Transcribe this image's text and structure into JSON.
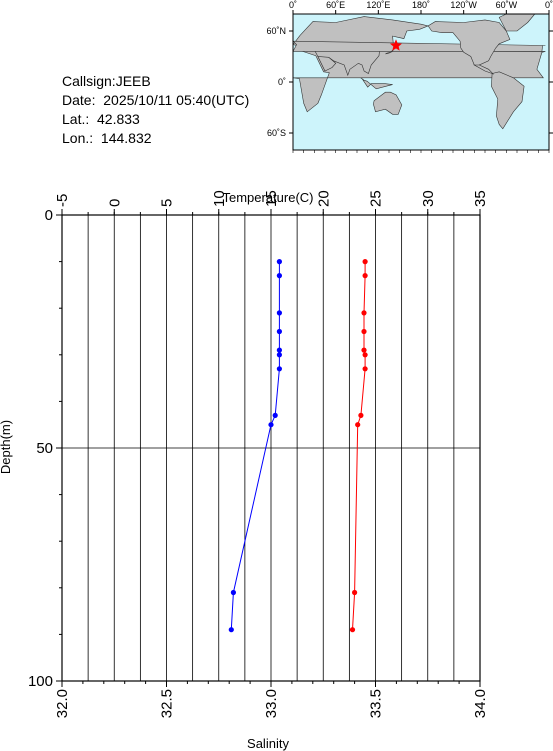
{
  "station": {
    "callsign_line": "Callsign:JEEB",
    "date_line": "Date:  2025/10/11 05:40(UTC)",
    "lat_line": "Lat.:  42.833",
    "lon_line": "Lon.:  144.832"
  },
  "map": {
    "lon_labels": [
      "0˚",
      "60˚E",
      "120˚E",
      "180˚",
      "120˚W",
      "60˚W",
      "0˚"
    ],
    "lat_labels": [
      "60˚N",
      "0˚",
      "60˚S"
    ],
    "marker_lat": 42.833,
    "marker_lon": 144.832,
    "ocean_color": "#cdf4fb",
    "land_color": "#c0c0c0",
    "marker_color": "#ff0000"
  },
  "chart_data": {
    "type": "line",
    "xlabel_top": "Temperature(C)",
    "xlabel_bottom": "Salinity",
    "ylabel": "Depth(m)",
    "temperature_lim": [
      -5,
      35
    ],
    "temperature_ticks": [
      "-5",
      "0",
      "5",
      "10",
      "15",
      "20",
      "25",
      "30",
      "35"
    ],
    "salinity_lim": [
      32.0,
      34.0
    ],
    "salinity_ticks": [
      "32.0",
      "32.5",
      "33.0",
      "33.5",
      "34.0"
    ],
    "depth_lim": [
      0,
      100
    ],
    "depth_ticks": [
      "0",
      "50",
      "100"
    ],
    "series": [
      {
        "axis": "temperature",
        "color": "#ff0000",
        "depth": [
          10,
          13,
          21,
          25,
          29,
          30,
          33,
          43,
          45,
          81,
          89
        ],
        "values": [
          24.0,
          24.0,
          23.9,
          23.9,
          23.9,
          24.0,
          24.0,
          23.6,
          23.3,
          23.0,
          22.8
        ]
      },
      {
        "axis": "salinity",
        "color": "#0000ff",
        "depth": [
          10,
          13,
          21,
          25,
          29,
          30,
          33,
          43,
          45,
          81,
          89
        ],
        "values": [
          33.04,
          33.04,
          33.04,
          33.04,
          33.04,
          33.04,
          33.04,
          33.02,
          33.0,
          32.82,
          32.81
        ]
      }
    ]
  }
}
